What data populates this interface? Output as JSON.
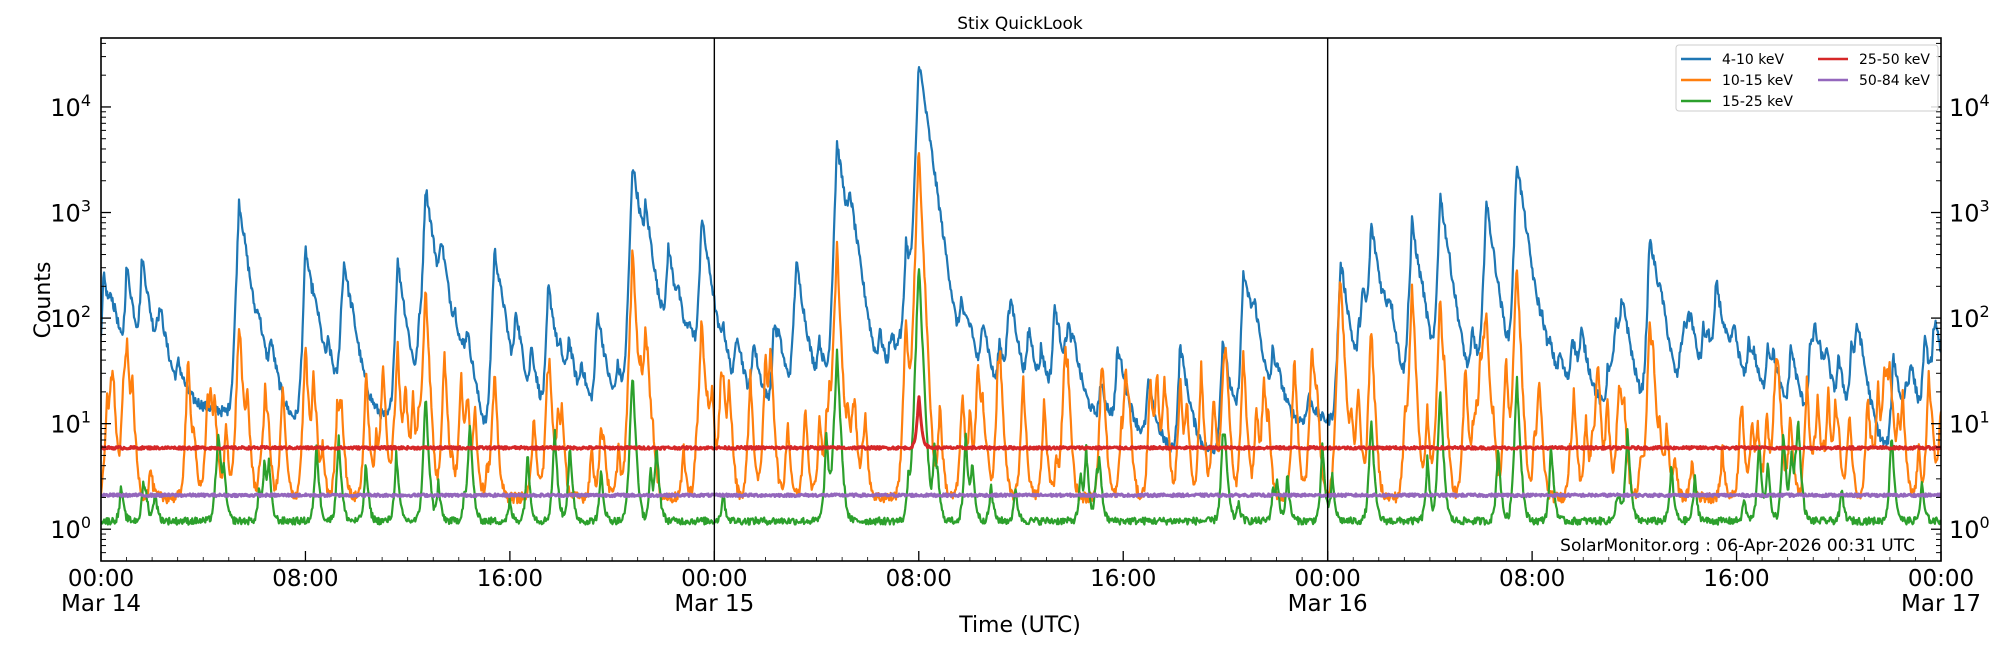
{
  "chart_data": {
    "type": "line",
    "title": "Stix QuickLook",
    "xlabel": "Time (UTC)",
    "ylabel": "Counts",
    "yscale": "log",
    "ylim": [
      0.5,
      45000
    ],
    "xlim": [
      "Mar 14 00:00",
      "Mar 17 00:00"
    ],
    "grid": false,
    "legend_position": "top-right",
    "x_ticks": [
      {
        "time": "00:00",
        "date": "Mar 14",
        "hour": 0
      },
      {
        "time": "08:00",
        "date": "",
        "hour": 8
      },
      {
        "time": "16:00",
        "date": "",
        "hour": 16
      },
      {
        "time": "00:00",
        "date": "Mar 15",
        "hour": 24
      },
      {
        "time": "08:00",
        "date": "",
        "hour": 32
      },
      {
        "time": "16:00",
        "date": "",
        "hour": 40
      },
      {
        "time": "00:00",
        "date": "Mar 16",
        "hour": 48
      },
      {
        "time": "08:00",
        "date": "",
        "hour": 56
      },
      {
        "time": "16:00",
        "date": "",
        "hour": 64
      },
      {
        "time": "00:00",
        "date": "Mar 17",
        "hour": 72
      }
    ],
    "y_ticks": [
      {
        "base": "10",
        "exp": "0",
        "value": 1
      },
      {
        "base": "10",
        "exp": "1",
        "value": 10
      },
      {
        "base": "10",
        "exp": "2",
        "value": 100
      },
      {
        "base": "10",
        "exp": "3",
        "value": 1000
      },
      {
        "base": "10",
        "exp": "4",
        "value": 10000
      }
    ],
    "day_boundaries_hours": [
      24,
      48
    ],
    "series": [
      {
        "name": "4-10 keV",
        "color": "#1f77b4",
        "baseline": 14,
        "peaks": [
          [
            0.1,
            260
          ],
          [
            1.0,
            300
          ],
          [
            1.6,
            330
          ],
          [
            5.4,
            1300
          ],
          [
            8.0,
            420
          ],
          [
            9.5,
            300
          ],
          [
            11.6,
            350
          ],
          [
            12.7,
            1800
          ],
          [
            13.3,
            450
          ],
          [
            15.4,
            430
          ],
          [
            17.5,
            200
          ],
          [
            20.8,
            3000
          ],
          [
            21.3,
            800
          ],
          [
            22.2,
            400
          ],
          [
            23.5,
            900
          ],
          [
            27.2,
            300
          ],
          [
            28.8,
            4500
          ],
          [
            29.3,
            1000
          ],
          [
            31.5,
            480
          ],
          [
            32.0,
            28000
          ],
          [
            37.3,
            120
          ],
          [
            44.7,
            280
          ],
          [
            48.5,
            250
          ],
          [
            49.7,
            750
          ],
          [
            51.3,
            800
          ],
          [
            52.4,
            1500
          ],
          [
            54.2,
            1300
          ],
          [
            55.4,
            3100
          ],
          [
            60.6,
            580
          ],
          [
            62.2,
            60
          ],
          [
            63.2,
            220
          ],
          [
            68.8,
            30
          ]
        ]
      },
      {
        "name": "10-15 keV",
        "color": "#ff7f0e",
        "baseline": 2,
        "peaks": [
          [
            1.0,
            35
          ],
          [
            5.4,
            70
          ],
          [
            8.0,
            60
          ],
          [
            11.6,
            60
          ],
          [
            12.7,
            220
          ],
          [
            15.4,
            30
          ],
          [
            20.8,
            450
          ],
          [
            21.3,
            80
          ],
          [
            23.5,
            100
          ],
          [
            26.2,
            50
          ],
          [
            28.8,
            480
          ],
          [
            31.5,
            100
          ],
          [
            32.0,
            4200
          ],
          [
            44.7,
            50
          ],
          [
            48.5,
            250
          ],
          [
            49.7,
            90
          ],
          [
            51.3,
            220
          ],
          [
            52.4,
            150
          ],
          [
            54.2,
            120
          ],
          [
            55.4,
            360
          ],
          [
            60.6,
            90
          ],
          [
            70.0,
            30
          ]
        ]
      },
      {
        "name": "15-25 keV",
        "color": "#2ca02c",
        "baseline": 1.2,
        "peaks": [
          [
            12.7,
            20
          ],
          [
            20.8,
            30
          ],
          [
            28.8,
            50
          ],
          [
            32.0,
            350
          ],
          [
            49.7,
            12
          ],
          [
            52.4,
            20
          ],
          [
            55.4,
            30
          ]
        ]
      },
      {
        "name": "25-50 keV",
        "color": "#d62728",
        "baseline": 5.9,
        "peaks": [
          [
            32.0,
            20
          ]
        ]
      },
      {
        "name": "50-84 keV",
        "color": "#9467bd",
        "baseline": 2.1,
        "peaks": []
      }
    ],
    "annotation": "SolarMonitor.org : 06-Apr-2026 00:31 UTC"
  }
}
